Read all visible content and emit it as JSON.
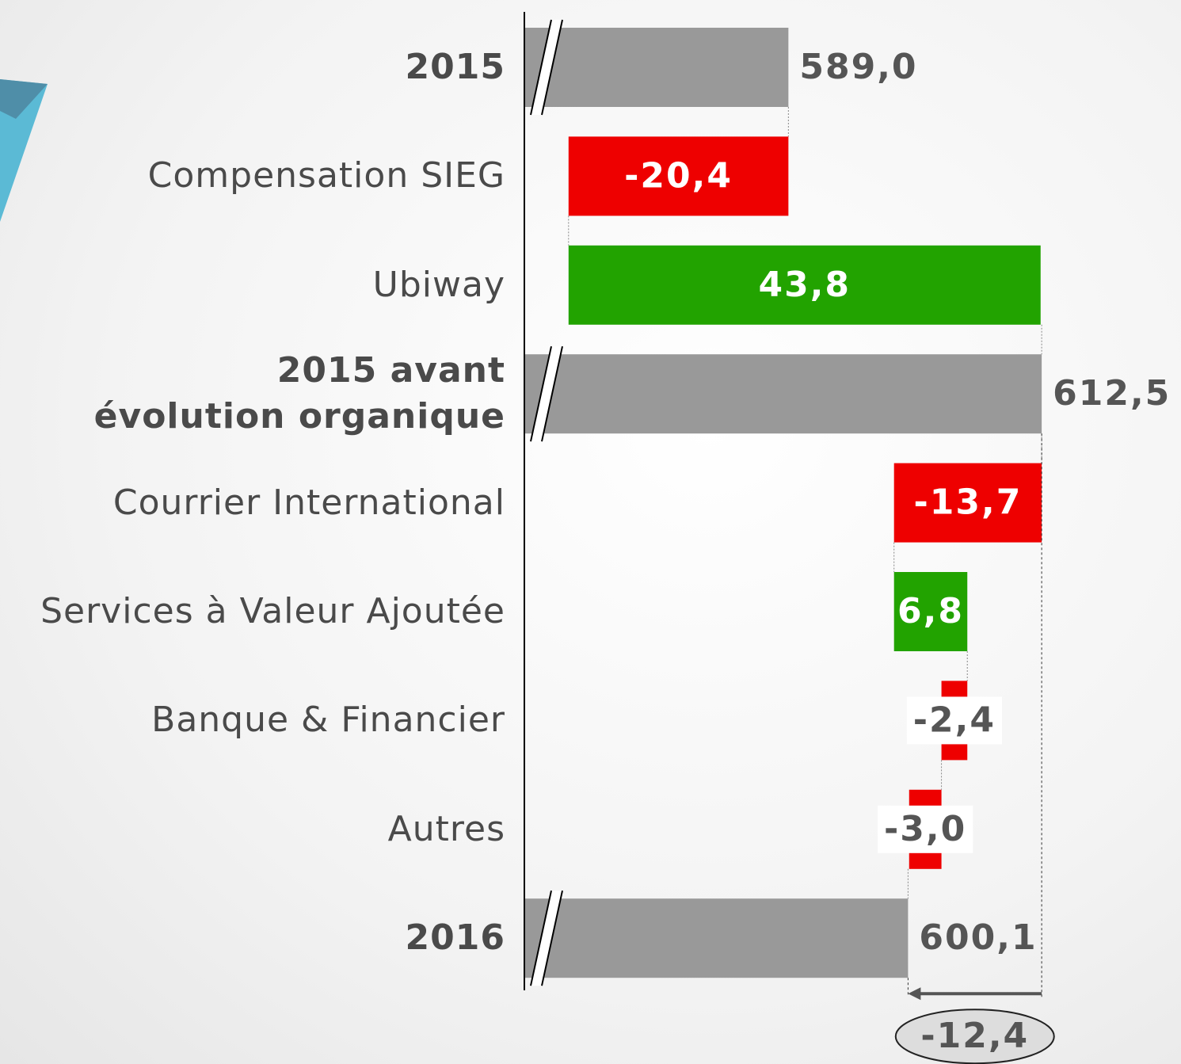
{
  "chart_data": {
    "type": "waterfall",
    "categories": [
      "2015",
      "Compensation SIEG",
      "Ubiway",
      "2015 avant\névolution organique",
      "Courrier International",
      "Services à Valeur Ajoutée",
      "Banque & Financier",
      "Autres",
      "2016"
    ],
    "values": [
      589.0,
      -20.4,
      43.8,
      612.5,
      -13.7,
      6.8,
      -2.4,
      -3.0,
      600.1
    ],
    "value_labels": [
      "589,0",
      "-20,4",
      "43,8",
      "612,5",
      "-13,7",
      "6,8",
      "-2,4",
      "-3,0",
      "600,1"
    ],
    "totals": [
      0,
      3,
      8
    ],
    "colors": {
      "total": "#999999",
      "decrease": "#ee0000",
      "increase": "#22a300"
    },
    "xlim": [
      564.5,
      625.5
    ],
    "annotations": [
      {
        "text": "-12,4"
      }
    ]
  }
}
